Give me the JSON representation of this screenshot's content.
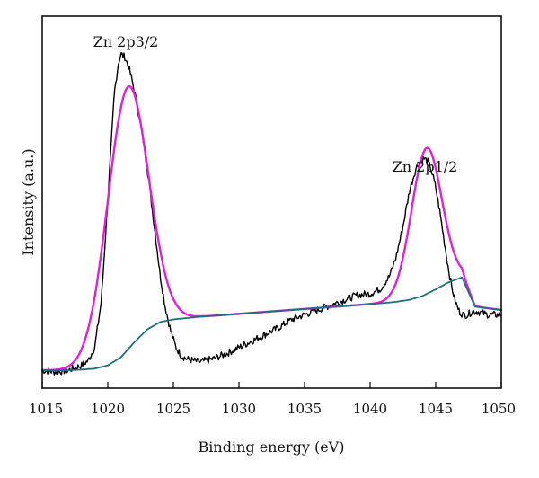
{
  "chart_data": {
    "type": "line",
    "title": "",
    "xlabel": "Binding energy (eV)",
    "ylabel": "Intensity (a.u.)",
    "xlim": [
      1015,
      1050
    ],
    "ylim": [
      0,
      100
    ],
    "xticks": [
      1015,
      1020,
      1025,
      1030,
      1035,
      1040,
      1045,
      1050
    ],
    "y_tick_labels": false,
    "grid": false,
    "annotations": [
      {
        "text": "Zn 2p3/2",
        "x": 1021.5,
        "y": 100
      },
      {
        "text": "Zn 2p1/2",
        "x": 1044.3,
        "y": 67
      }
    ],
    "series": [
      {
        "id": "raw",
        "color": "#000000",
        "style": "noisy",
        "x": [
          1015.0,
          1016.0,
          1017.0,
          1018.0,
          1018.5,
          1019.0,
          1019.5,
          1020.0,
          1020.5,
          1020.8,
          1021.0,
          1021.3,
          1021.6,
          1021.9,
          1022.2,
          1022.5,
          1022.8,
          1023.1,
          1023.4,
          1023.7,
          1024.0,
          1024.4,
          1024.8,
          1025.2,
          1025.6,
          1026.0,
          1026.5,
          1027.0,
          1028.0,
          1029.0,
          1030.0,
          1031.0,
          1032.0,
          1033.0,
          1034.0,
          1035.0,
          1036.0,
          1037.0,
          1038.0,
          1039.0,
          1040.0,
          1040.8,
          1041.5,
          1042.0,
          1042.5,
          1043.0,
          1043.5,
          1043.8,
          1044.1,
          1044.4,
          1044.7,
          1045.0,
          1045.3,
          1045.6,
          1045.9,
          1046.2,
          1046.5,
          1046.8,
          1047.1,
          1047.4,
          1047.8,
          1048.2,
          1049.0,
          1050.0
        ],
        "y": [
          3,
          2.5,
          3,
          4.5,
          6,
          10,
          24,
          55,
          88,
          97,
          100,
          99,
          96,
          91,
          85,
          78,
          71,
          62,
          52,
          42,
          32,
          22,
          15,
          10,
          7.5,
          6.5,
          6,
          5.5,
          6.5,
          8,
          10,
          12,
          14,
          16,
          18.5,
          20,
          21.5,
          23,
          24.5,
          26,
          26.5,
          28,
          32,
          38,
          47,
          58,
          65,
          67,
          68,
          67,
          64,
          59,
          52,
          44,
          36,
          29,
          24,
          21,
          20,
          20,
          21,
          21,
          20,
          20
        ]
      },
      {
        "id": "fitted",
        "color": "#e81ce0",
        "style": "smooth",
        "peaks": [
          {
            "center": 1021.5,
            "height": 80.5,
            "width": 1.55
          },
          {
            "center": 1044.3,
            "height": 44.7,
            "width": 1.15
          }
        ]
      },
      {
        "id": "background",
        "color": "#1f6e80",
        "style": "smooth",
        "x": [
          1015,
          1016,
          1017,
          1018,
          1019,
          1020,
          1021,
          1022,
          1023,
          1024,
          1025,
          1026,
          1027,
          1028,
          1029,
          1030,
          1031,
          1032,
          1033,
          1034,
          1035,
          1036,
          1037,
          1038,
          1039,
          1040,
          1041,
          1042,
          1043,
          1044,
          1045,
          1046,
          1047,
          1048,
          1049,
          1050
        ],
        "y": [
          3,
          3,
          3,
          3.2,
          3.5,
          4.5,
          7,
          11.5,
          15.5,
          17.8,
          18.6,
          19,
          19.4,
          19.7,
          20,
          20.3,
          20.6,
          20.9,
          21.2,
          21.5,
          21.8,
          22.1,
          22.4,
          22.7,
          23,
          23.3,
          23.6,
          24,
          24.6,
          25.8,
          27.8,
          30,
          31.5,
          22.5,
          22,
          21.5
        ]
      }
    ]
  }
}
